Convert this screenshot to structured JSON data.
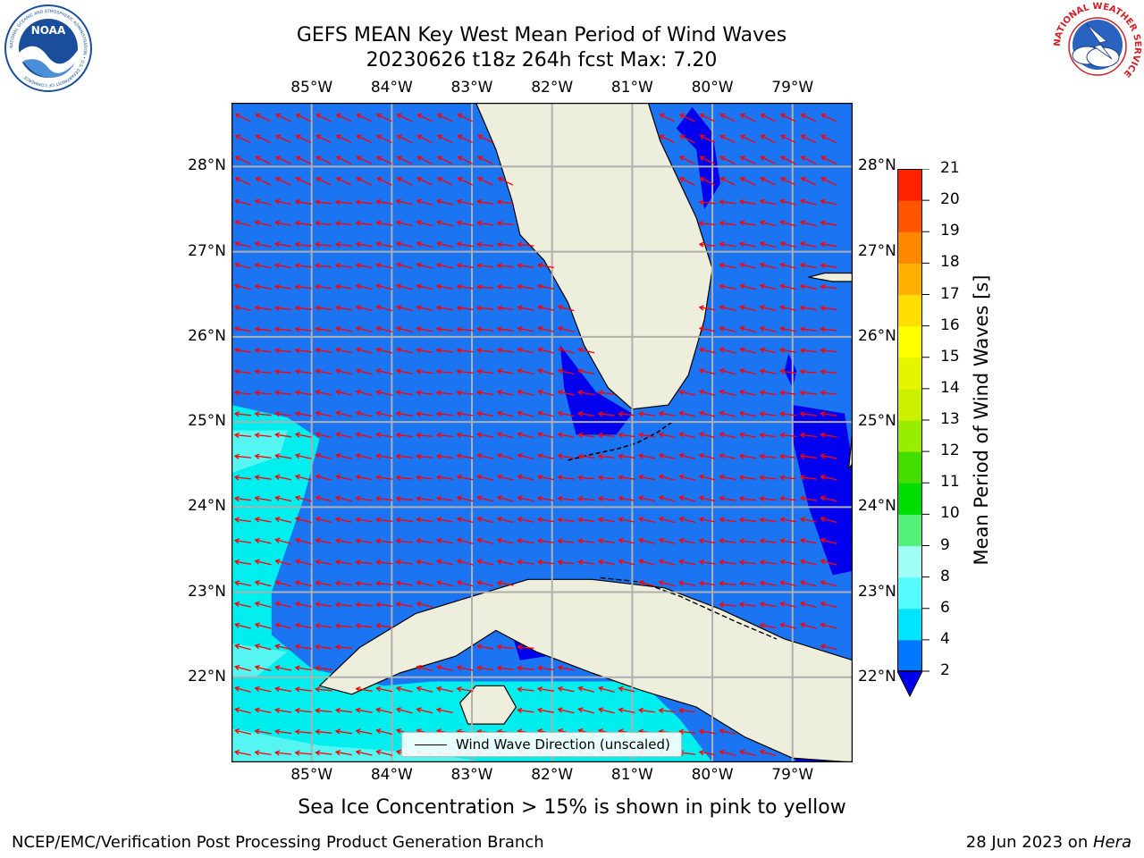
{
  "title": {
    "line1": "GEFS MEAN Key West Mean Period of Wind Waves",
    "line2": "20230626 t18z 264h fcst   Max: 7.20"
  },
  "axes": {
    "x_ticks": [
      "85°W",
      "84°W",
      "83°W",
      "82°W",
      "81°W",
      "80°W",
      "79°W"
    ],
    "x_values": [
      -85,
      -84,
      -83,
      -82,
      -81,
      -80,
      -79
    ],
    "y_ticks": [
      "28°N",
      "27°N",
      "26°N",
      "25°N",
      "24°N",
      "23°N",
      "22°N"
    ],
    "y_values": [
      28,
      27,
      26,
      25,
      24,
      23,
      22
    ],
    "lon_range": [
      -86.0,
      -78.25
    ],
    "lat_range": [
      21.0,
      28.75
    ],
    "grid": true
  },
  "colorbar": {
    "label": "Mean Period of Wind Waves [s]",
    "tick_labels": [
      "21",
      "20",
      "19",
      "18",
      "17",
      "16",
      "15",
      "14",
      "13",
      "12",
      "11",
      "10",
      "9",
      "8",
      "6",
      "4",
      "2"
    ],
    "levels": [
      2,
      4,
      6,
      8,
      9,
      10,
      11,
      12,
      13,
      14,
      15,
      16,
      17,
      18,
      19,
      20,
      21
    ],
    "colors": [
      "#0077ff",
      "#00e5ff",
      "#55fcff",
      "#a0fff5",
      "#55f07a",
      "#00dd00",
      "#44dd00",
      "#99ee00",
      "#ccf000",
      "#e5f500",
      "#ffff00",
      "#ffdd00",
      "#ffb000",
      "#ff8800",
      "#ff5500",
      "#ff2200"
    ],
    "under_color": "#0000ee",
    "extend": "min"
  },
  "field_colors": {
    "deep": "#0000ee",
    "main": "#1b74f2",
    "cyan": "#00eeee",
    "light": "#55f5f2",
    "land": "#eeeedd",
    "arrow": "#ff0000"
  },
  "legend": {
    "label": "Wind Wave Direction (unscaled)"
  },
  "footer": {
    "note": "Sea Ice Concentration > 15% is shown in pink to yellow",
    "left": "NCEP/EMC/Verification Post Processing Product Generation Branch",
    "date": "28 Jun 2023 on ",
    "machine": "Hera"
  },
  "logos": {
    "noaa": {
      "text": "NOAA",
      "ring": "NATIONAL OCEANIC AND ATMOSPHERIC ADMINISTRATION • U.S. DEPARTMENT OF COMMERCE"
    },
    "nws": {
      "ring": "NATIONAL WEATHER SERVICE"
    }
  }
}
